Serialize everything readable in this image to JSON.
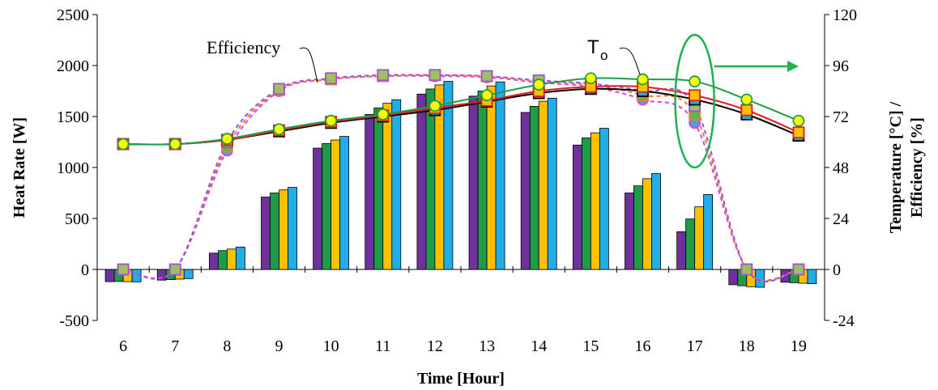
{
  "chart_data": {
    "type": "bar",
    "categories": [
      "6",
      "7",
      "8",
      "9",
      "10",
      "11",
      "12",
      "13",
      "14",
      "15",
      "16",
      "17",
      "18",
      "19"
    ],
    "xlabel": "Time [Hour]",
    "ylabel": "Heat Rate [W]",
    "y2label_line1": "Temperature [°C] /",
    "y2label_line2": "Efficiency [%]",
    "ylim": [
      -500,
      2500
    ],
    "y_ticks": [
      "-500",
      "0",
      "500",
      "1000",
      "1500",
      "2000",
      "2500"
    ],
    "y2lim": [
      -24,
      120
    ],
    "y2_ticks": [
      "-24",
      "0",
      "24",
      "48",
      "72",
      "96",
      "120"
    ],
    "grid": false,
    "bar_colors": [
      "#7030A0",
      "#1E9C48",
      "#FFC000",
      "#1FAEE8"
    ],
    "bar_series": [
      {
        "values": [
          -120,
          -105,
          160,
          710,
          1190,
          1520,
          1720,
          1700,
          1540,
          1220,
          750,
          370,
          -150,
          -125
        ]
      },
      {
        "values": [
          -118,
          -100,
          185,
          750,
          1235,
          1585,
          1770,
          1750,
          1600,
          1290,
          820,
          495,
          -160,
          -130
        ]
      },
      {
        "values": [
          -120,
          -95,
          200,
          780,
          1270,
          1630,
          1810,
          1800,
          1650,
          1340,
          890,
          615,
          -170,
          -135
        ]
      },
      {
        "values": [
          -122,
          -90,
          220,
          805,
          1305,
          1665,
          1845,
          1840,
          1680,
          1385,
          940,
          735,
          -175,
          -140
        ]
      }
    ],
    "temperature_series": [
      {
        "color": "#000000",
        "marker_fill": "#1FAEE8",
        "marker": "square",
        "values": [
          59,
          59,
          61,
          65,
          69,
          72,
          75,
          79,
          83,
          85,
          84,
          80,
          73,
          63
        ]
      },
      {
        "color": "#E02020",
        "marker_fill": "#FFC000",
        "marker": "square",
        "values": [
          59,
          59,
          61,
          65.5,
          69.5,
          72.5,
          76,
          79.5,
          84,
          86,
          86,
          82,
          75,
          64.5
        ]
      },
      {
        "color": "#1E9C48",
        "marker_fill": "#FFFF00",
        "marker": "circle",
        "values": [
          59,
          59,
          61.5,
          66,
          70,
          73,
          77,
          82,
          87,
          90,
          89.5,
          88.5,
          80,
          70
        ]
      }
    ],
    "efficiency_series": [
      {
        "color": "#E040E0",
        "marker_fill": "#5B9BD5",
        "marker": "circle",
        "values": [
          0,
          0,
          56,
          84,
          89.5,
          91,
          91,
          90.5,
          88,
          86,
          80,
          69,
          0,
          0
        ]
      },
      {
        "color": "#ED7D31",
        "marker_fill": "#70AD47",
        "marker": "square",
        "values": [
          0,
          0,
          58,
          84.5,
          89.5,
          91,
          91.5,
          91,
          88.5,
          87,
          82,
          73,
          0,
          0
        ]
      },
      {
        "color": "#A050E0",
        "marker_fill": "#A0C060",
        "marker": "square",
        "values": [
          0,
          0,
          60,
          85,
          90,
          91.5,
          91.5,
          91,
          89,
          87.5,
          84,
          77,
          0,
          0
        ]
      }
    ],
    "annotations": {
      "efficiency_label": "Efficiency",
      "to_label_main": "T",
      "to_label_sub": "o"
    },
    "annotation_color": "#1FB050"
  }
}
